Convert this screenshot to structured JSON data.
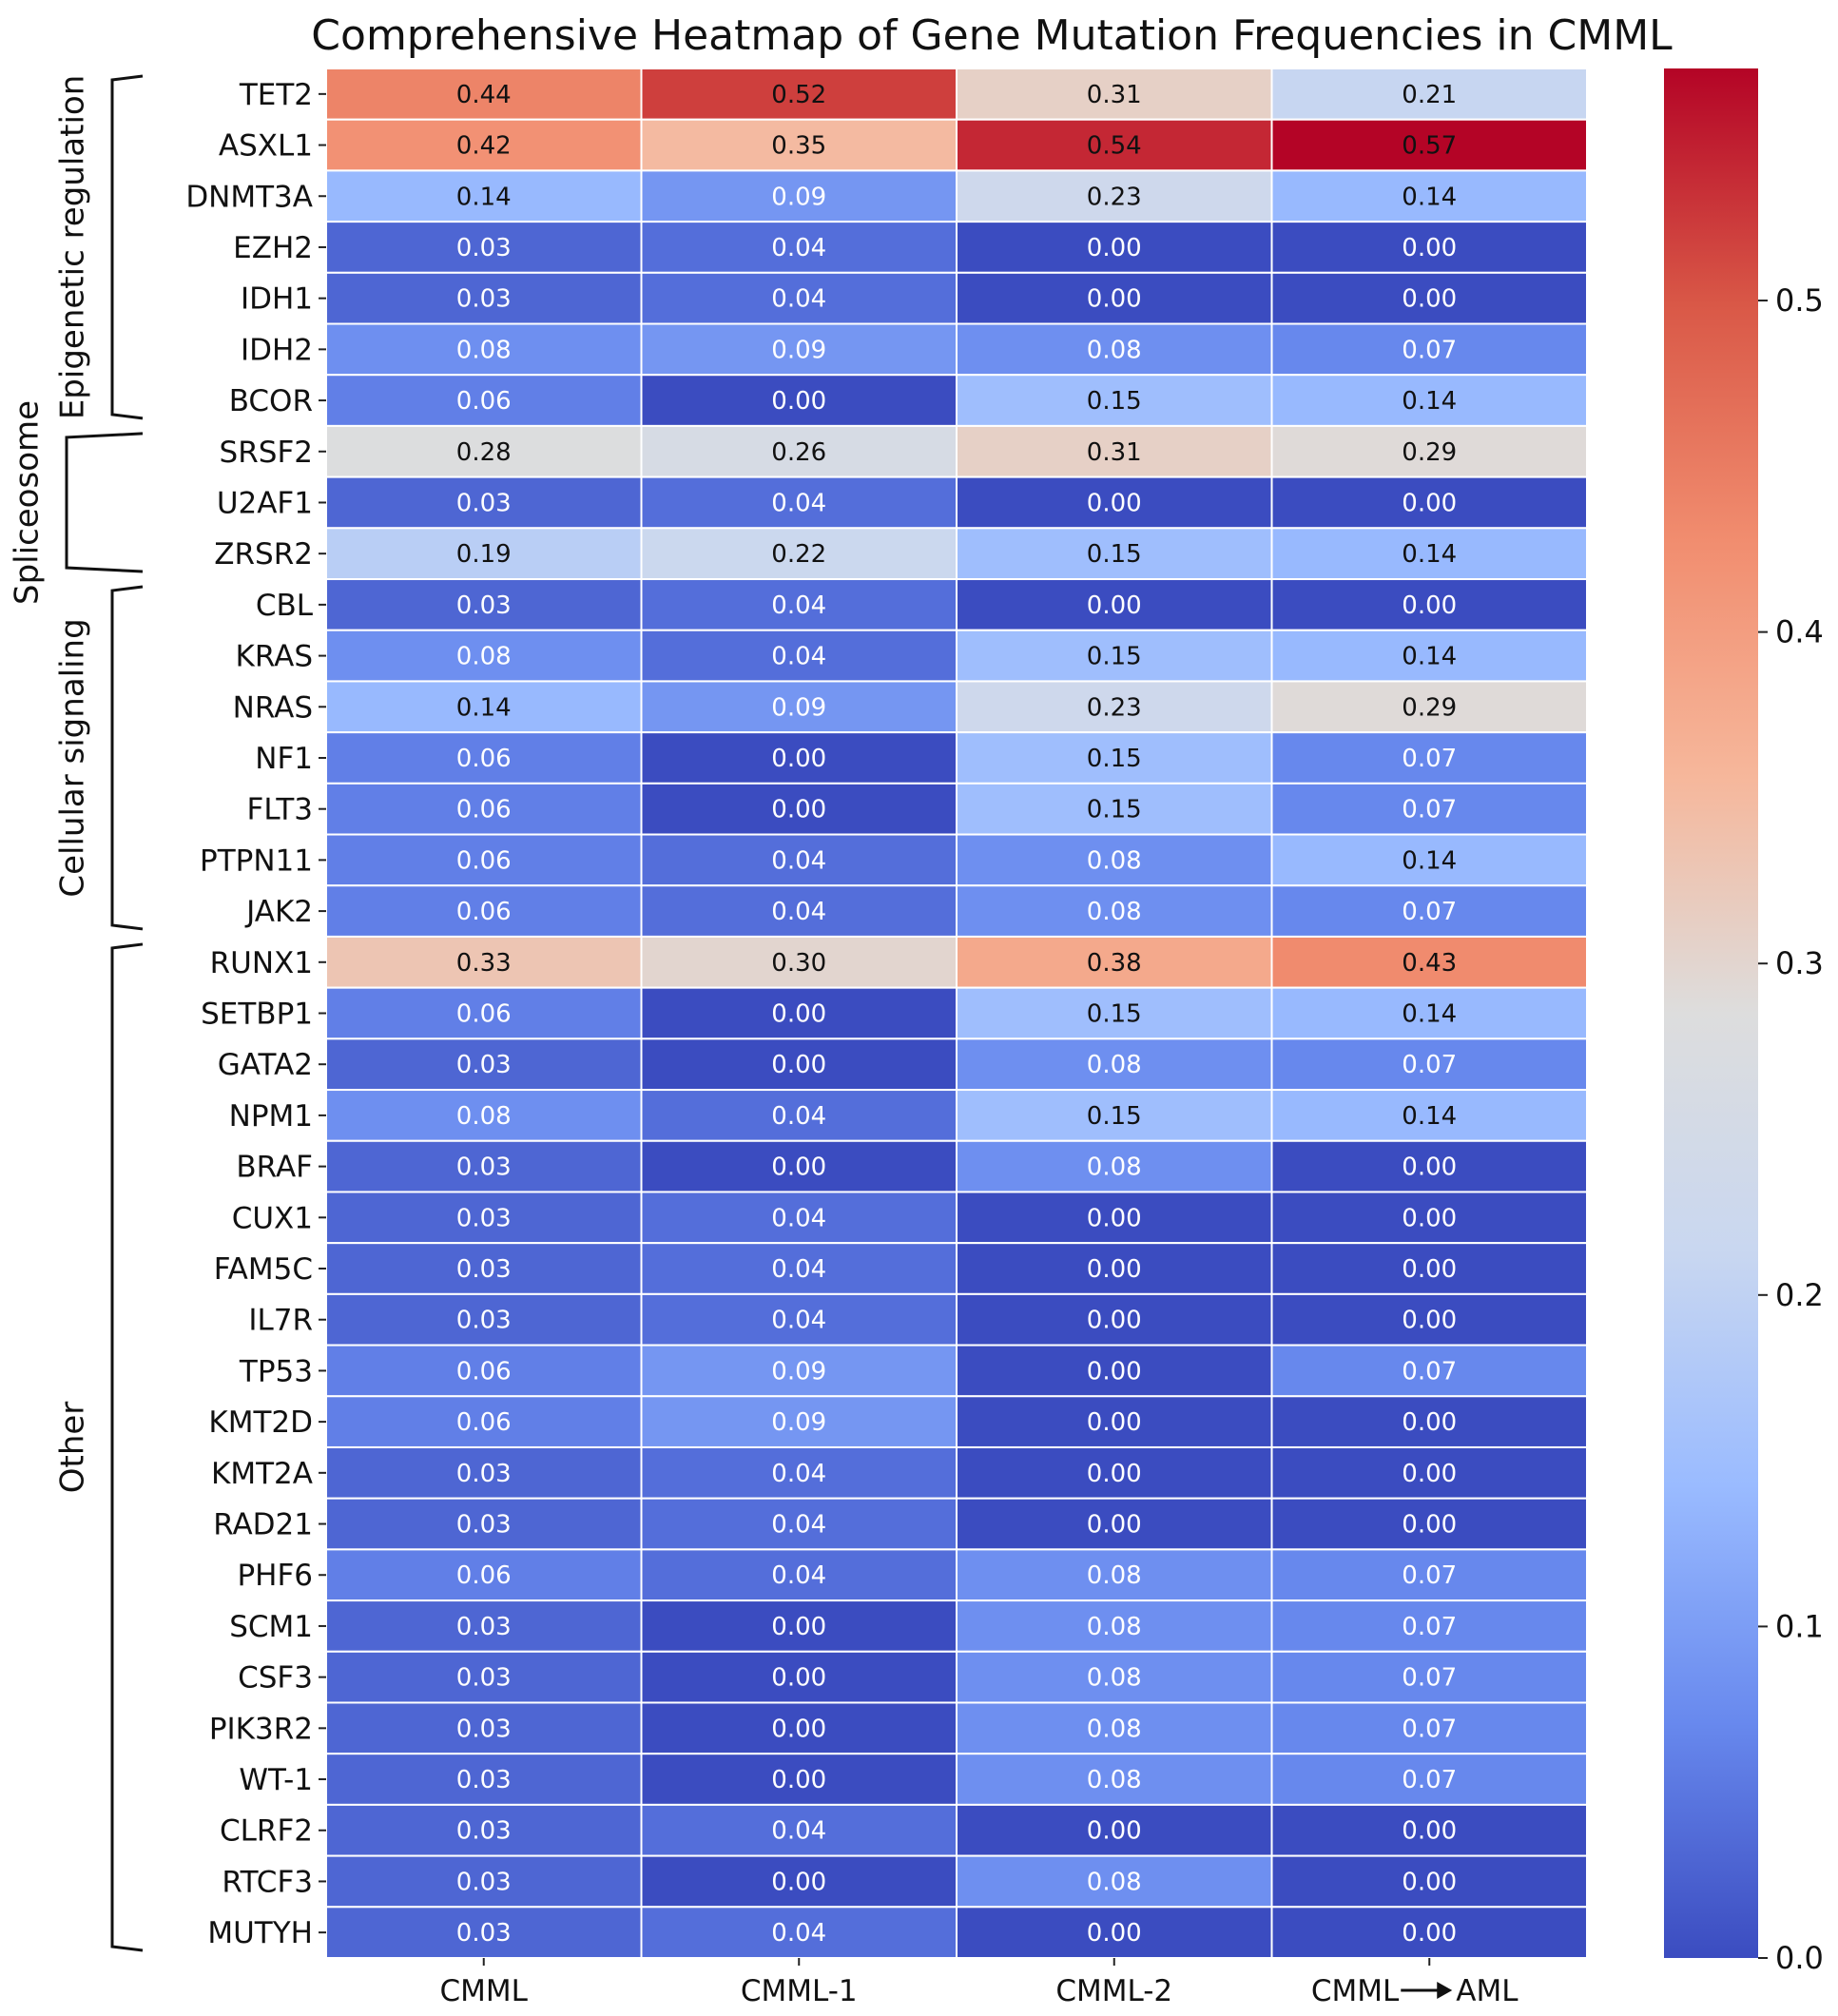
{
  "chart_data": {
    "type": "heatmap",
    "title": "Comprehensive Heatmap of Gene Mutation Frequencies in CMML",
    "columns": [
      "CMML",
      "CMML-1",
      "CMML-2",
      "CMML→AML"
    ],
    "columns_display": [
      "CMML",
      "CMML-1",
      "CMML-2",
      "CMML",
      "AML"
    ],
    "rows": [
      "TET2",
      "ASXL1",
      "DNMT3A",
      "EZH2",
      "IDH1",
      "IDH2",
      "BCOR",
      "SRSF2",
      "U2AF1",
      "ZRSR2",
      "CBL",
      "KRAS",
      "NRAS",
      "NF1",
      "FLT3",
      "PTPN11",
      "JAK2",
      "RUNX1",
      "SETBP1",
      "GATA2",
      "NPM1",
      "BRAF",
      "CUX1",
      "FAM5C",
      "IL7R",
      "TP53",
      "KMT2D",
      "KMT2A",
      "RAD21",
      "PHF6",
      "SCM1",
      "CSF3",
      "PIK3R2",
      "WT-1",
      "CLRF2",
      "RTCF3",
      "MUTYH"
    ],
    "values": [
      [
        0.44,
        0.52,
        0.31,
        0.21
      ],
      [
        0.42,
        0.35,
        0.54,
        0.57
      ],
      [
        0.14,
        0.09,
        0.23,
        0.14
      ],
      [
        0.03,
        0.04,
        0.0,
        0.0
      ],
      [
        0.03,
        0.04,
        0.0,
        0.0
      ],
      [
        0.08,
        0.09,
        0.08,
        0.07
      ],
      [
        0.06,
        0.0,
        0.15,
        0.14
      ],
      [
        0.28,
        0.26,
        0.31,
        0.29
      ],
      [
        0.03,
        0.04,
        0.0,
        0.0
      ],
      [
        0.19,
        0.22,
        0.15,
        0.14
      ],
      [
        0.03,
        0.04,
        0.0,
        0.0
      ],
      [
        0.08,
        0.04,
        0.15,
        0.14
      ],
      [
        0.14,
        0.09,
        0.23,
        0.29
      ],
      [
        0.06,
        0.0,
        0.15,
        0.07
      ],
      [
        0.06,
        0.0,
        0.15,
        0.07
      ],
      [
        0.06,
        0.04,
        0.08,
        0.14
      ],
      [
        0.06,
        0.04,
        0.08,
        0.07
      ],
      [
        0.33,
        0.3,
        0.38,
        0.43
      ],
      [
        0.06,
        0.0,
        0.15,
        0.14
      ],
      [
        0.03,
        0.0,
        0.08,
        0.07
      ],
      [
        0.08,
        0.04,
        0.15,
        0.14
      ],
      [
        0.03,
        0.0,
        0.08,
        0.0
      ],
      [
        0.03,
        0.04,
        0.0,
        0.0
      ],
      [
        0.03,
        0.04,
        0.0,
        0.0
      ],
      [
        0.03,
        0.04,
        0.0,
        0.0
      ],
      [
        0.06,
        0.09,
        0.0,
        0.07
      ],
      [
        0.06,
        0.09,
        0.0,
        0.0
      ],
      [
        0.03,
        0.04,
        0.0,
        0.0
      ],
      [
        0.03,
        0.04,
        0.0,
        0.0
      ],
      [
        0.06,
        0.04,
        0.08,
        0.07
      ],
      [
        0.03,
        0.0,
        0.08,
        0.07
      ],
      [
        0.03,
        0.0,
        0.08,
        0.07
      ],
      [
        0.03,
        0.0,
        0.08,
        0.07
      ],
      [
        0.03,
        0.0,
        0.08,
        0.07
      ],
      [
        0.03,
        0.04,
        0.0,
        0.0
      ],
      [
        0.03,
        0.0,
        0.08,
        0.0
      ],
      [
        0.03,
        0.04,
        0.0,
        0.0
      ]
    ],
    "value_labels": [
      [
        "0.44",
        "0.52",
        "0.31",
        "0.21"
      ],
      [
        "0.42",
        "0.35",
        "0.54",
        "0.57"
      ],
      [
        "0.14",
        "0.09",
        "0.23",
        "0.14"
      ],
      [
        "0.03",
        "0.04",
        "0.00",
        "0.00"
      ],
      [
        "0.03",
        "0.04",
        "0.00",
        "0.00"
      ],
      [
        "0.08",
        "0.09",
        "0.08",
        "0.07"
      ],
      [
        "0.06",
        "0.00",
        "0.15",
        "0.14"
      ],
      [
        "0.28",
        "0.26",
        "0.31",
        "0.29"
      ],
      [
        "0.03",
        "0.04",
        "0.00",
        "0.00"
      ],
      [
        "0.19",
        "0.22",
        "0.15",
        "0.14"
      ],
      [
        "0.03",
        "0.04",
        "0.00",
        "0.00"
      ],
      [
        "0.08",
        "0.04",
        "0.15",
        "0.14"
      ],
      [
        "0.14",
        "0.09",
        "0.23",
        "0.29"
      ],
      [
        "0.06",
        "0.00",
        "0.15",
        "0.07"
      ],
      [
        "0.06",
        "0.00",
        "0.15",
        "0.07"
      ],
      [
        "0.06",
        "0.04",
        "0.08",
        "0.14"
      ],
      [
        "0.06",
        "0.04",
        "0.08",
        "0.07"
      ],
      [
        "0.33",
        "0.30",
        "0.38",
        "0.43"
      ],
      [
        "0.06",
        "0.00",
        "0.15",
        "0.14"
      ],
      [
        "0.03",
        "0.00",
        "0.08",
        "0.07"
      ],
      [
        "0.08",
        "0.04",
        "0.15",
        "0.14"
      ],
      [
        "0.03",
        "0.00",
        "0.08",
        "0.00"
      ],
      [
        "0.03",
        "0.04",
        "0.00",
        "0.00"
      ],
      [
        "0.03",
        "0.04",
        "0.00",
        "0.00"
      ],
      [
        "0.03",
        "0.04",
        "0.00",
        "0.00"
      ],
      [
        "0.06",
        "0.09",
        "0.00",
        "0.07"
      ],
      [
        "0.06",
        "0.09",
        "0.00",
        "0.00"
      ],
      [
        "0.03",
        "0.04",
        "0.00",
        "0.00"
      ],
      [
        "0.03",
        "0.04",
        "0.00",
        "0.00"
      ],
      [
        "0.06",
        "0.04",
        "0.08",
        "0.07"
      ],
      [
        "0.03",
        "0.00",
        "0.08",
        "0.07"
      ],
      [
        "0.03",
        "0.00",
        "0.08",
        "0.07"
      ],
      [
        "0.03",
        "0.00",
        "0.08",
        "0.07"
      ],
      [
        "0.03",
        "0.00",
        "0.08",
        "0.07"
      ],
      [
        "0.03",
        "0.04",
        "0.00",
        "0.00"
      ],
      [
        "0.03",
        "0.00",
        "0.08",
        "0.00"
      ],
      [
        "0.03",
        "0.04",
        "0.00",
        "0.00"
      ]
    ],
    "groups": [
      {
        "name": "Epigenetic regulation",
        "start": 0,
        "end": 6
      },
      {
        "name": "Spliceosome",
        "start": 7,
        "end": 9
      },
      {
        "name": "Cellular signaling",
        "start": 10,
        "end": 16
      },
      {
        "name": "Other",
        "start": 17,
        "end": 36
      }
    ],
    "colorbar": {
      "range": [
        0,
        0.57
      ],
      "ticks": [
        0.0,
        0.1,
        0.2,
        0.3,
        0.4,
        0.5
      ],
      "tick_labels": [
        "0.0",
        "0.1",
        "0.2",
        "0.3",
        "0.4",
        "0.5"
      ],
      "colormap": "coolwarm",
      "colors": [
        "#3b4cc0",
        "#6889ee",
        "#9abbff",
        "#c9d7f0",
        "#dddddd",
        "#f6b79b",
        "#f18d6f",
        "#d95847",
        "#b40426"
      ]
    },
    "annot_threshold": 0.125,
    "annot_dark_color": "#111111",
    "annot_light_color": "#ffffff",
    "xlabel": "",
    "ylabel": ""
  }
}
